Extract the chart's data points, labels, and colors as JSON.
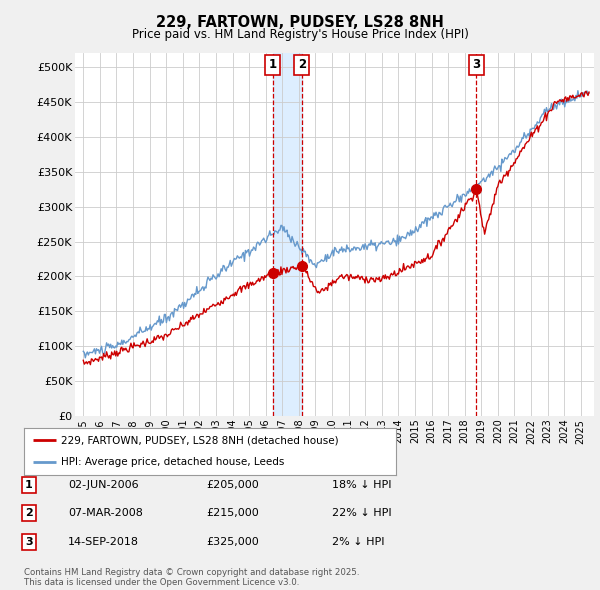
{
  "title": "229, FARTOWN, PUDSEY, LS28 8NH",
  "subtitle": "Price paid vs. HM Land Registry's House Price Index (HPI)",
  "legend_label_red": "229, FARTOWN, PUDSEY, LS28 8NH (detached house)",
  "legend_label_blue": "HPI: Average price, detached house, Leeds",
  "copyright_text": "Contains HM Land Registry data © Crown copyright and database right 2025.\nThis data is licensed under the Open Government Licence v3.0.",
  "transactions": [
    {
      "num": 1,
      "date": "02-JUN-2006",
      "price": 205000,
      "hpi_diff": "18% ↓ HPI",
      "x_year": 2006.42
    },
    {
      "num": 2,
      "date": "07-MAR-2008",
      "price": 215000,
      "hpi_diff": "22% ↓ HPI",
      "x_year": 2008.18
    },
    {
      "num": 3,
      "date": "14-SEP-2018",
      "price": 325000,
      "hpi_diff": "2% ↓ HPI",
      "x_year": 2018.71
    }
  ],
  "ylim": [
    0,
    520000
  ],
  "yticks": [
    0,
    50000,
    100000,
    150000,
    200000,
    250000,
    300000,
    350000,
    400000,
    450000,
    500000
  ],
  "ytick_labels": [
    "£0",
    "£50K",
    "£100K",
    "£150K",
    "£200K",
    "£250K",
    "£300K",
    "£350K",
    "£400K",
    "£450K",
    "£500K"
  ],
  "xlim_start": 1994.5,
  "xlim_end": 2025.8,
  "xticks": [
    1995,
    1996,
    1997,
    1998,
    1999,
    2000,
    2001,
    2002,
    2003,
    2004,
    2005,
    2006,
    2007,
    2008,
    2009,
    2010,
    2011,
    2012,
    2013,
    2014,
    2015,
    2016,
    2017,
    2018,
    2019,
    2020,
    2021,
    2022,
    2023,
    2024,
    2025
  ],
  "bg_color": "#f0f0f0",
  "plot_bg_color": "#ffffff",
  "red_color": "#cc0000",
  "blue_color": "#6699cc",
  "shade_color": "#ddeeff",
  "grid_color": "#cccccc",
  "transaction_line_color": "#cc0000",
  "box_color": "#cc0000"
}
